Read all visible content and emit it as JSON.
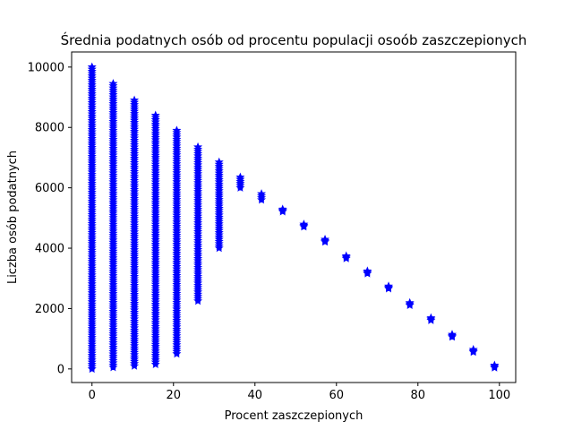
{
  "chart_data": {
    "type": "scatter",
    "title": "Średnia podatnych osób od procentu populacji osoób zaszczepionych",
    "xlabel": "Procent zaszczepionych",
    "ylabel": "Liczba osób podatnych",
    "xlim": [
      -5,
      104
    ],
    "ylim": [
      -450,
      10500
    ],
    "xticks": [
      0,
      20,
      40,
      60,
      80,
      100
    ],
    "yticks": [
      0,
      2000,
      4000,
      6000,
      8000,
      10000
    ],
    "grid": false,
    "legend": "none",
    "marker": "star",
    "color": "#0000ff",
    "series": [
      {
        "point_ranges": [
          {
            "x": 0,
            "y_min": 0,
            "y_max": 10000
          },
          {
            "x": 5.2,
            "y_min": 50,
            "y_max": 9450
          },
          {
            "x": 10.4,
            "y_min": 100,
            "y_max": 8900
          },
          {
            "x": 15.6,
            "y_min": 150,
            "y_max": 8400
          },
          {
            "x": 20.8,
            "y_min": 500,
            "y_max": 7900
          },
          {
            "x": 26.0,
            "y_min": 2250,
            "y_max": 7350
          },
          {
            "x": 31.2,
            "y_min": 4000,
            "y_max": 6850
          },
          {
            "x": 36.4,
            "y_min": 6000,
            "y_max": 6350
          },
          {
            "x": 41.6,
            "y_min": 5600,
            "y_max": 5800
          }
        ],
        "points": [
          {
            "x": 46.8,
            "y": 5250
          },
          {
            "x": 52.0,
            "y": 4750
          },
          {
            "x": 57.2,
            "y": 4250
          },
          {
            "x": 62.4,
            "y": 3700
          },
          {
            "x": 67.6,
            "y": 3200
          },
          {
            "x": 72.8,
            "y": 2700
          },
          {
            "x": 78.0,
            "y": 2150
          },
          {
            "x": 83.2,
            "y": 1650
          },
          {
            "x": 88.4,
            "y": 1100
          },
          {
            "x": 93.6,
            "y": 600
          },
          {
            "x": 98.8,
            "y": 80
          }
        ]
      }
    ]
  }
}
